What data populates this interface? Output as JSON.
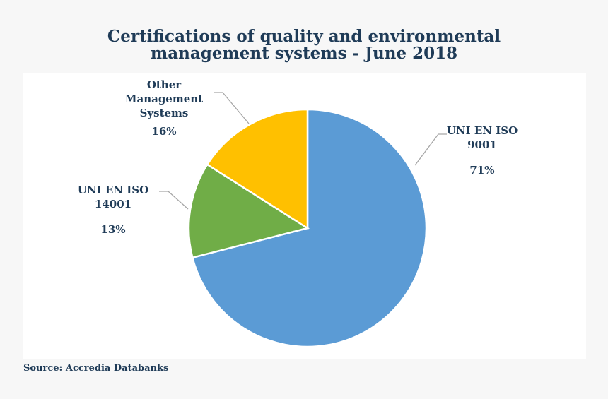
{
  "chart_data": {
    "type": "pie",
    "title_lines": [
      "Certifications of quality and environmental",
      "management systems - June 2018"
    ],
    "slices": [
      {
        "label_lines": [
          "UNI EN ISO",
          "9001"
        ],
        "value": 71,
        "display": "71%",
        "color": "#5b9bd5"
      },
      {
        "label_lines": [
          "UNI EN ISO",
          "14001"
        ],
        "value": 13,
        "display": "13%",
        "color": "#70ad47"
      },
      {
        "label_lines": [
          "Other",
          "Management",
          "Systems"
        ],
        "value": 16,
        "display": "16%",
        "color": "#ffc000"
      }
    ],
    "source": "Source: Accredia Databanks"
  }
}
